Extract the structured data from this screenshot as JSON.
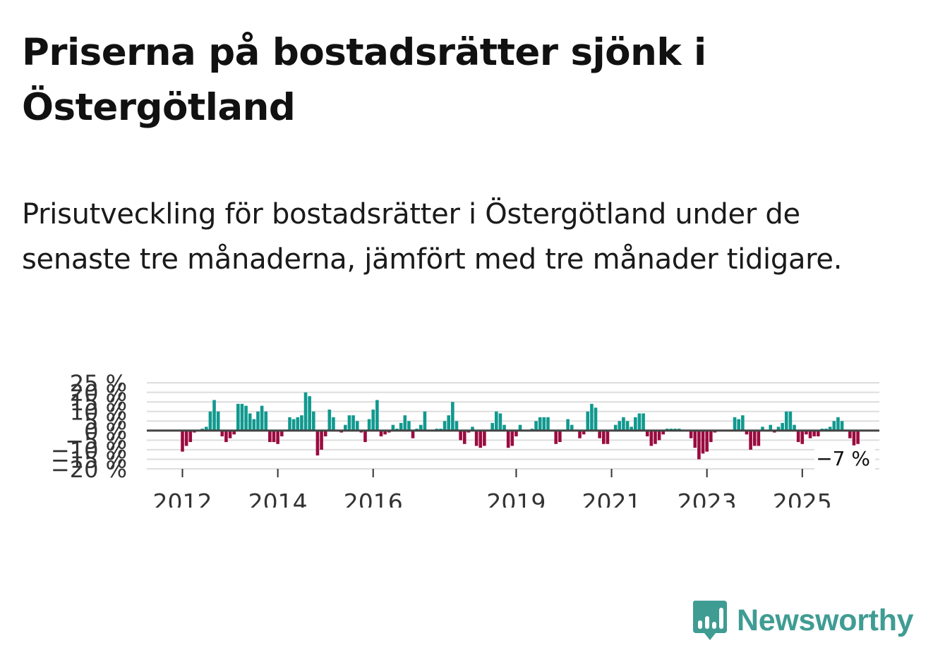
{
  "title": "Priserna på bostadsrätter sjönk i Östergötland",
  "subtitle": "Prisutveckling för bostadsrätter i Östergötland under de senaste tre månaderna, jämfört med tre månader tidigare.",
  "brand": {
    "name": "Newsworthy",
    "color": "#3f9c93"
  },
  "colors": {
    "positive": "#10998f",
    "negative": "#9a0b3f",
    "grid": "#dddddd",
    "zero": "#444444"
  },
  "chart_data": {
    "type": "bar",
    "title": "Prisutveckling för bostadsrätter i Östergötland",
    "xlabel": "",
    "ylabel": "",
    "ylim": [
      -20,
      25
    ],
    "y_ticks": [
      25,
      20,
      15,
      10,
      5,
      0,
      -5,
      -10,
      -15,
      -20
    ],
    "y_tick_labels": [
      "25 %",
      "20 %",
      "15 %",
      "10 %",
      "5 %",
      "0 %",
      "−5 %",
      "−10 %",
      "−15 %",
      "−20 %"
    ],
    "x_ticks": [
      2012,
      2014,
      2016,
      2019,
      2021,
      2023,
      2025
    ],
    "x_tick_labels": [
      "2012",
      "2014",
      "2016",
      "2019",
      "2021",
      "2023",
      "2025"
    ],
    "start": {
      "year": 2012,
      "month": 1
    },
    "frequency": "monthly",
    "values": [
      -11,
      -8,
      -6,
      -1,
      0,
      1,
      2,
      10,
      16,
      10,
      -3,
      -6,
      -4,
      -2,
      14,
      14,
      13,
      9,
      6,
      10,
      13,
      10,
      -6,
      -6,
      -7,
      -3,
      0,
      7,
      6,
      7,
      8,
      20,
      18,
      10,
      -13,
      -10,
      -3,
      11,
      7,
      0,
      -1,
      3,
      8,
      8,
      5,
      -1,
      -6,
      6,
      11,
      16,
      -3,
      -2,
      -1,
      3,
      1,
      4,
      8,
      5,
      -4,
      1,
      3,
      10,
      0,
      0,
      1,
      1,
      5,
      8,
      15,
      5,
      -5,
      -7,
      -1,
      2,
      -8,
      -9,
      -8,
      0,
      4,
      10,
      9,
      3,
      -9,
      -8,
      -3,
      3,
      0,
      0,
      1,
      5,
      7,
      7,
      7,
      0,
      -7,
      -6,
      0,
      6,
      3,
      0,
      -4,
      -2,
      10,
      14,
      12,
      -4,
      -7,
      -7,
      0,
      3,
      5,
      7,
      5,
      2,
      7,
      9,
      9,
      -3,
      -8,
      -7,
      -5,
      -2,
      1,
      1,
      1,
      1,
      0,
      0,
      -4,
      -9,
      -15,
      -12,
      -11,
      -6,
      -1,
      0,
      0,
      0,
      0,
      7,
      6,
      8,
      -2,
      -10,
      -8,
      -8,
      2,
      0,
      3,
      -1,
      2,
      4,
      10,
      10,
      3,
      -6,
      -7,
      -2,
      -4,
      -3,
      -3,
      1,
      1,
      2,
      5,
      7,
      5,
      0,
      -4,
      -9,
      -7
    ],
    "last_value_label": "−7 %"
  }
}
